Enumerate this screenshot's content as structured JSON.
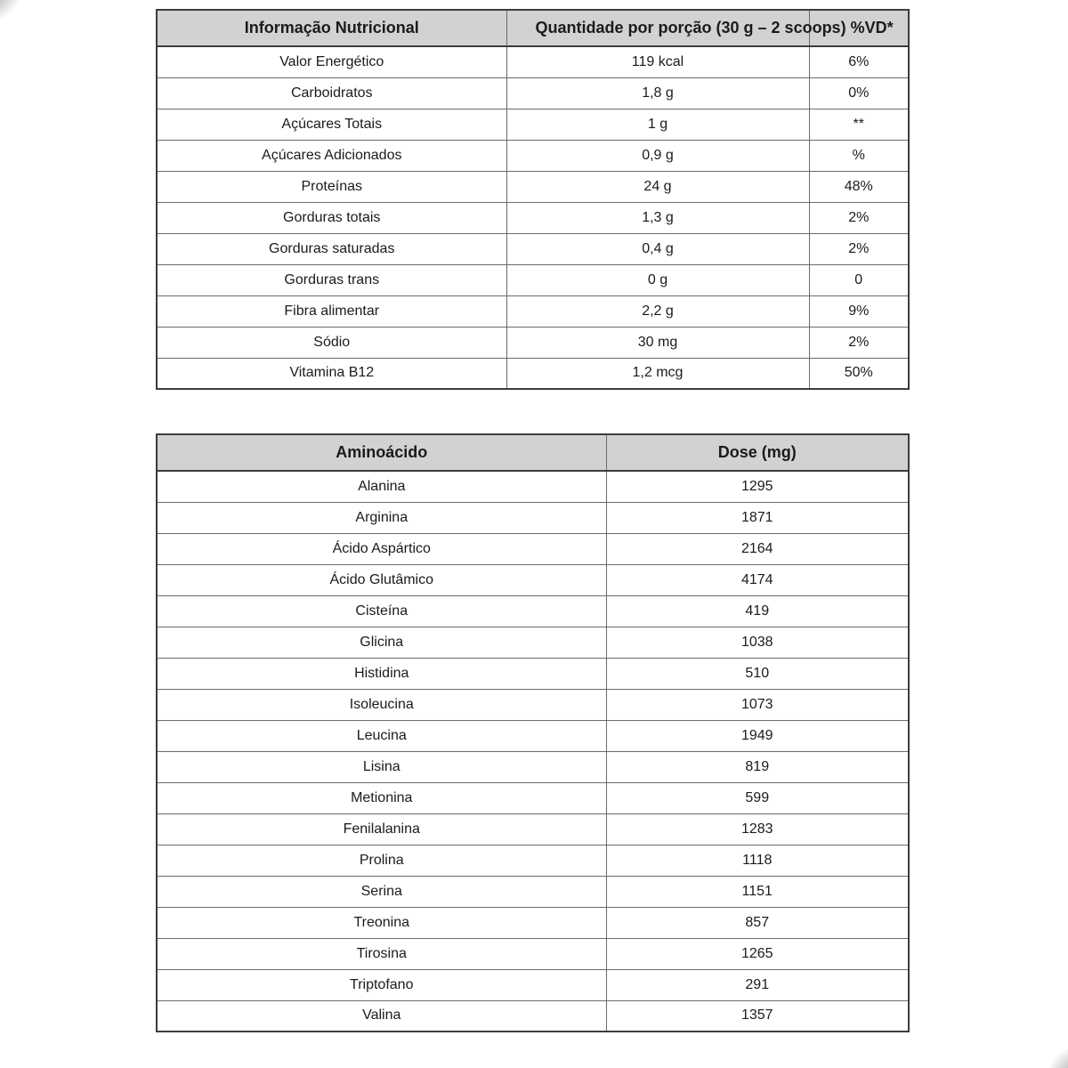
{
  "colors": {
    "header_bg": "#d2d2d2",
    "border_dark": "#3c3c3c",
    "border_light": "#6b6b6b",
    "text": "#1b1b1b",
    "page_bg": "#ffffff"
  },
  "nutrition_table": {
    "header": {
      "title": "Informação Nutricional",
      "quantity": "Quantidade por porção (30 g – 2 scoops) %VD*"
    },
    "rows": [
      {
        "label": "Valor Energético",
        "amount": "119 kcal",
        "dv": "6%"
      },
      {
        "label": "Carboidratos",
        "amount": "1,8 g",
        "dv": "0%"
      },
      {
        "label": "Açúcares Totais",
        "amount": "1 g",
        "dv": "**"
      },
      {
        "label": "Açúcares Adicionados",
        "amount": "0,9 g",
        "dv": "%"
      },
      {
        "label": "Proteínas",
        "amount": "24 g",
        "dv": "48%"
      },
      {
        "label": "Gorduras totais",
        "amount": "1,3 g",
        "dv": "2%"
      },
      {
        "label": "Gorduras saturadas",
        "amount": "0,4 g",
        "dv": "2%"
      },
      {
        "label": "Gorduras trans",
        "amount": "0 g",
        "dv": "0"
      },
      {
        "label": "Fibra alimentar",
        "amount": "2,2 g",
        "dv": "9%"
      },
      {
        "label": "Sódio",
        "amount": "30 mg",
        "dv": "2%"
      },
      {
        "label": "Vitamina B12",
        "amount": "1,2 mcg",
        "dv": "50%"
      }
    ]
  },
  "amino_table": {
    "header": {
      "name": "Aminoácido",
      "dose": "Dose (mg)"
    },
    "rows": [
      {
        "name": "Alanina",
        "dose": "1295"
      },
      {
        "name": "Arginina",
        "dose": "1871"
      },
      {
        "name": "Ácido Aspártico",
        "dose": "2164"
      },
      {
        "name": "Ácido Glutâmico",
        "dose": "4174"
      },
      {
        "name": "Cisteína",
        "dose": "419"
      },
      {
        "name": "Glicina",
        "dose": "1038"
      },
      {
        "name": "Histidina",
        "dose": "510"
      },
      {
        "name": "Isoleucina",
        "dose": "1073"
      },
      {
        "name": "Leucina",
        "dose": "1949"
      },
      {
        "name": "Lisina",
        "dose": "819"
      },
      {
        "name": "Metionina",
        "dose": "599"
      },
      {
        "name": "Fenilalanina",
        "dose": "1283"
      },
      {
        "name": "Prolina",
        "dose": "1118"
      },
      {
        "name": "Serina",
        "dose": "1151"
      },
      {
        "name": "Treonina",
        "dose": "857"
      },
      {
        "name": "Tirosina",
        "dose": "1265"
      },
      {
        "name": "Triptofano",
        "dose": "291"
      },
      {
        "name": "Valina",
        "dose": "1357"
      }
    ]
  }
}
